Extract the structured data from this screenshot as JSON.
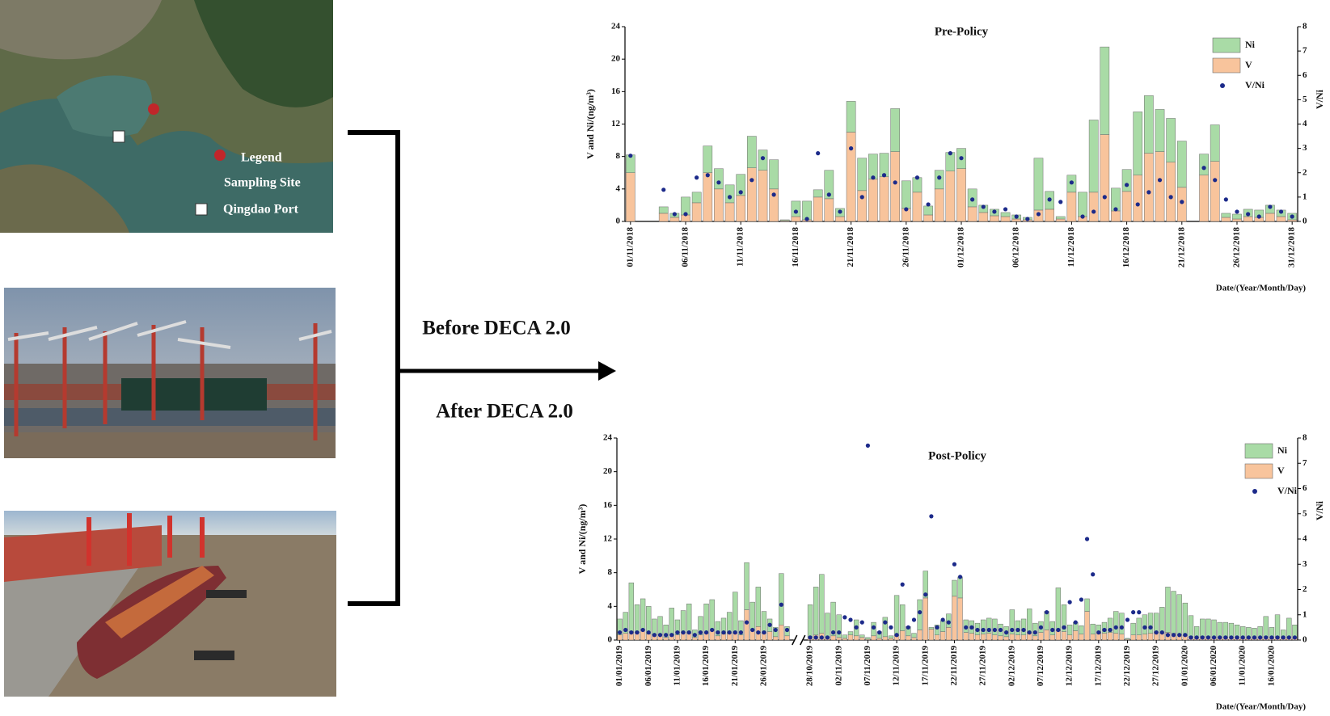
{
  "map_legend": {
    "title": "Legend",
    "items": [
      "Sampling Site",
      "Qingdao Port"
    ]
  },
  "arrow_labels": [
    "Before DECA 2.0",
    "After DECA 2.0"
  ],
  "chart_data": [
    {
      "type": "bar",
      "title": "Pre-Policy",
      "ylabel": "V and Ni/(ng/m³)",
      "y2label": "V/Ni",
      "xlabel": "Date/(Year/Month/Day)",
      "stacked": true,
      "legend": "top-right",
      "categories": [
        "01/11/2018",
        null,
        null,
        null,
        null,
        "06/11/2018",
        null,
        null,
        null,
        null,
        "11/11/2018",
        null,
        null,
        null,
        null,
        "16/11/2018",
        null,
        null,
        null,
        null,
        "21/11/2018",
        null,
        null,
        null,
        null,
        "26/11/2018",
        null,
        null,
        null,
        null,
        "01/12/2018",
        null,
        null,
        null,
        null,
        "06/12/2018",
        null,
        null,
        null,
        null,
        "11/12/2018",
        null,
        null,
        null,
        null,
        "16/12/2018",
        null,
        null,
        null,
        null,
        "21/12/2018",
        null,
        null,
        null,
        null,
        "26/12/2018",
        null,
        null,
        null,
        null,
        "31/12/2018"
      ],
      "series": [
        {
          "name": "Ni",
          "color": "#a9dba6",
          "values": [
            2.2,
            null,
            null,
            0.8,
            0.5,
            2.2,
            1.3,
            3.3,
            2.5,
            2.2,
            2.6,
            3.9,
            2.5,
            3.6,
            0.1,
            1.9,
            2.3,
            0.9,
            3.5,
            1.0,
            3.8,
            4.0,
            3.1,
            2.9,
            5.3,
            3.4,
            1.8,
            1.1,
            2.3,
            2.3,
            2.5,
            2.2,
            0.9,
            0.8,
            0.5,
            0.5,
            0.3,
            6.4,
            2.2,
            0.3,
            2.1,
            3.0,
            8.9,
            10.8,
            2.8,
            2.7,
            7.8,
            7.1,
            5.2,
            5.4,
            5.7,
            null,
            2.6,
            4.5,
            0.5,
            0.6,
            0.9,
            0.9,
            1.0,
            0.8,
            0.8
          ]
        },
        {
          "name": "V",
          "color": "#f8c49c",
          "values": [
            6,
            null,
            null,
            1,
            0.5,
            0.8,
            2.3,
            6,
            4,
            2.3,
            3.2,
            6.6,
            6.3,
            4,
            0.1,
            0.6,
            0.2,
            3,
            2.8,
            0.6,
            11,
            3.8,
            5.2,
            5.5,
            8.6,
            1.6,
            3.6,
            0.8,
            4,
            6.2,
            6.5,
            1.8,
            1.1,
            0.7,
            0.6,
            0.3,
            0.2,
            1.4,
            1.5,
            0.3,
            3.6,
            0.6,
            3.6,
            10.7,
            1.3,
            3.7,
            5.7,
            8.4,
            8.6,
            7.3,
            4.2,
            null,
            5.7,
            7.4,
            0.5,
            0.3,
            0.6,
            0.5,
            1,
            0.6,
            0.2
          ]
        },
        {
          "name": "V/Ni",
          "color": "#1c2a8a",
          "axis": "y2",
          "values": [
            2.7,
            null,
            null,
            1.3,
            0.3,
            0.3,
            1.8,
            1.9,
            1.6,
            1.0,
            1.2,
            1.7,
            2.6,
            1.1,
            null,
            0.4,
            0.1,
            2.8,
            1.1,
            0.4,
            3.0,
            1.0,
            1.8,
            1.9,
            1.6,
            0.5,
            1.8,
            0.7,
            1.8,
            2.8,
            2.6,
            0.9,
            0.6,
            0.4,
            0.5,
            0.2,
            0.1,
            0.3,
            0.9,
            0.8,
            1.6,
            0.2,
            0.4,
            1.0,
            0.5,
            1.5,
            0.7,
            1.2,
            1.7,
            1.0,
            0.8,
            null,
            2.2,
            1.7,
            0.9,
            0.4,
            0.3,
            0.2,
            0.6,
            0.4,
            0.2
          ]
        }
      ],
      "ylim": [
        0,
        24
      ],
      "yticks": [
        0,
        4,
        8,
        12,
        16,
        20,
        24
      ],
      "y2lim": [
        0,
        8
      ],
      "y2ticks": [
        0,
        1,
        2,
        3,
        4,
        5,
        6,
        7,
        8
      ]
    },
    {
      "type": "bar",
      "title": "Post-Policy",
      "ylabel": "V and Ni/(ng/m³)",
      "y2label": "V/Ni",
      "xlabel": "Date/(Year/Month/Day)",
      "stacked": true,
      "legend": "top-right",
      "axis_break_after": 29,
      "categories": [
        "01/01/2019",
        null,
        null,
        null,
        null,
        "06/01/2019",
        null,
        null,
        null,
        null,
        "11/01/2019",
        null,
        null,
        null,
        null,
        "16/01/2019",
        null,
        null,
        null,
        null,
        "21/01/2019",
        null,
        null,
        null,
        null,
        "26/01/2019",
        null,
        null,
        null,
        null,
        "28/10/2019",
        null,
        null,
        null,
        null,
        "02/11/2019",
        null,
        null,
        null,
        null,
        "07/11/2019",
        null,
        null,
        null,
        null,
        "12/11/2019",
        null,
        null,
        null,
        null,
        "17/11/2019",
        null,
        null,
        null,
        null,
        "22/11/2019",
        null,
        null,
        null,
        null,
        "27/11/2019",
        null,
        null,
        null,
        null,
        "02/12/2019",
        null,
        null,
        null,
        null,
        "07/12/2019",
        null,
        null,
        null,
        null,
        "12/12/2019",
        null,
        null,
        null,
        null,
        "17/12/2019",
        null,
        null,
        null,
        null,
        "22/12/2019",
        null,
        null,
        null,
        null,
        "27/12/2019",
        null,
        null,
        null,
        null,
        "01/01/2020",
        null,
        null,
        null,
        null,
        "06/01/2020",
        null,
        null,
        null,
        null,
        "11/01/2020",
        null,
        null,
        null,
        null,
        "16/01/2020",
        null,
        null,
        null,
        null
      ],
      "series": [
        {
          "name": "Ni",
          "color": "#a9dba6",
          "values": [
            1.9,
            2.5,
            5.8,
            3.3,
            3.7,
            3.3,
            1.9,
            2.2,
            1.5,
            3.2,
            1.8,
            2.6,
            3.5,
            0.9,
            2.2,
            3.5,
            3.6,
            1.7,
            1.9,
            2.5,
            4.9,
            1.7,
            5.6,
            3.3,
            4.7,
            2.6,
            1.5,
            1.1,
            6.1,
            1.1,
            3.8,
            5.7,
            7.0,
            2.9,
            4.0,
            2.7,
            0.4,
            0.4,
            1.9,
            0.3,
            0.2,
            1.6,
            0.8,
            2.3,
            0.3,
            4.8,
            3.1,
            1.1,
            0.5,
            3.6,
            3.2,
            0.2,
            1.2,
            1.3,
            1.6,
            1.9,
            2.5,
            1.5,
            1.5,
            1.4,
            1.7,
            1.8,
            1.9,
            1.4,
            1.2,
            2.9,
            1.7,
            1.9,
            2.9,
            1.5,
            1.3,
            2.2,
            1.6,
            5.1,
            3.2,
            1.2,
            1.0,
            1.0,
            1.5,
            1.2,
            1.0,
            1.3,
            1.7,
            2.6,
            2.5,
            0.1,
            1.4,
            2.0,
            2.3,
            2.4,
            2.3,
            3.1,
            5.4,
            5.0,
            4.8,
            3.9,
            2.5,
            1.3,
            2.1,
            2.1,
            2.1,
            1.8,
            1.8,
            1.7,
            1.5,
            1.4,
            1.3,
            1.2,
            1.3,
            2.4,
            1.3,
            2.6,
            1.0,
            2.3,
            1.6
          ]
        },
        {
          "name": "V",
          "color": "#f8c49c",
          "values": [
            0.6,
            0.8,
            1.0,
            0.9,
            1.2,
            0.7,
            0.6,
            0.6,
            0.3,
            0.6,
            0.6,
            0.9,
            0.8,
            0.3,
            0.6,
            0.8,
            1.2,
            0.5,
            0.7,
            0.8,
            0.8,
            0.6,
            3.6,
            1.2,
            1.6,
            0.8,
            1.0,
            0.4,
            1.8,
            0.5,
            0.4,
            0.6,
            0.8,
            0.3,
            0.5,
            0.3,
            0.2,
            0.6,
            0.5,
            0.3,
            0.1,
            0.5,
            0.2,
            0.4,
            0.2,
            0.5,
            1.1,
            0.5,
            0.3,
            1.2,
            5.0,
            1.3,
            0.6,
            1.0,
            1.5,
            5.2,
            5.0,
            0.9,
            0.8,
            0.6,
            0.7,
            0.8,
            0.6,
            0.5,
            0.4,
            0.7,
            0.6,
            0.6,
            0.8,
            0.5,
            0.9,
            1.2,
            0.6,
            1.1,
            1.0,
            0.6,
            1.1,
            0.7,
            3.4,
            0.7,
            0.8,
            0.8,
            0.9,
            0.8,
            0.7,
            0.1,
            0.6,
            0.6,
            0.7,
            0.8,
            0.9,
            0.8,
            0.9,
            0.8,
            0.6,
            0.5,
            0.4,
            0.3,
            0.4,
            0.4,
            0.3,
            0.3,
            0.3,
            0.3,
            0.3,
            0.2,
            0.2,
            0.2,
            0.3,
            0.4,
            0.2,
            0.4,
            0.2,
            0.3,
            0.2
          ]
        },
        {
          "name": "V/Ni",
          "color": "#1c2a8a",
          "axis": "y2",
          "values": [
            0.3,
            0.4,
            0.3,
            0.3,
            0.4,
            0.3,
            0.2,
            0.2,
            0.2,
            0.2,
            0.3,
            0.3,
            0.3,
            0.2,
            0.3,
            0.3,
            0.4,
            0.3,
            0.3,
            0.3,
            0.3,
            0.3,
            0.7,
            0.4,
            0.3,
            0.3,
            0.6,
            0.4,
            1.4,
            0.4,
            0.1,
            0.1,
            0.1,
            0.1,
            0.3,
            0.3,
            0.9,
            0.8,
            0.5,
            0.7,
            7.7,
            0.5,
            0.3,
            0.7,
            0.5,
            0.2,
            2.2,
            0.5,
            0.8,
            1.1,
            1.8,
            4.9,
            0.5,
            0.8,
            0.7,
            3.0,
            2.5,
            0.5,
            0.5,
            0.4,
            0.4,
            0.4,
            0.4,
            0.4,
            0.3,
            0.4,
            0.4,
            0.4,
            0.3,
            0.3,
            0.5,
            1.1,
            0.4,
            0.4,
            0.5,
            1.5,
            0.7,
            1.6,
            4.0,
            2.6,
            0.3,
            0.4,
            0.4,
            0.5,
            0.5,
            0.8,
            1.1,
            1.1,
            0.5,
            0.5,
            0.3,
            0.3,
            0.2,
            0.2,
            0.2,
            0.2,
            0.1,
            0.1,
            0.1,
            0.1,
            0.1,
            0.1,
            0.1,
            0.1,
            0.1,
            0.1,
            0.1,
            0.1,
            0.1,
            0.1,
            0.1,
            0.1,
            0.1,
            0.1,
            0.1
          ]
        }
      ],
      "ylim": [
        0,
        24
      ],
      "yticks": [
        0,
        4,
        8,
        12,
        16,
        20,
        24
      ],
      "y2lim": [
        0,
        8
      ],
      "y2ticks": [
        0,
        1,
        2,
        3,
        4,
        5,
        6,
        7,
        8
      ]
    }
  ]
}
